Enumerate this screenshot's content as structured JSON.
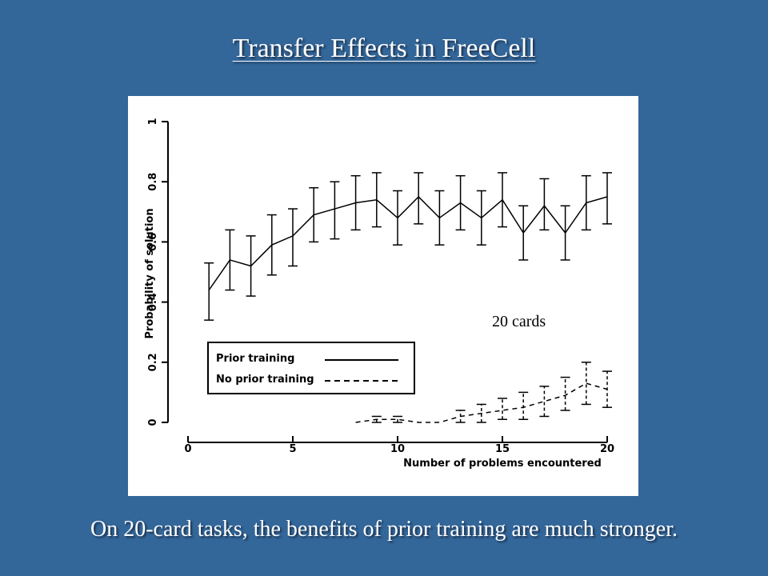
{
  "slide": {
    "title": "Transfer Effects in FreeCell",
    "caption": "On 20-card tasks, the benefits of prior training are much stronger."
  },
  "colors": {
    "background": "#336699",
    "text": "#ffffff",
    "panel": "#ffffff",
    "ink": "#000000"
  },
  "chart_data": {
    "type": "line",
    "xlabel": "Number of problems encountered",
    "ylabel": "Probability of solution",
    "xlim": [
      0,
      20
    ],
    "ylim": [
      0,
      1
    ],
    "xticks": [
      0,
      5,
      10,
      15,
      20
    ],
    "yticks": [
      0,
      0.2,
      0.4,
      0.6,
      0.8,
      1
    ],
    "legend_position": "bottom-left",
    "annotation": "20 cards",
    "series": [
      {
        "name": "Prior training",
        "style": "solid",
        "x": [
          1,
          2,
          3,
          4,
          5,
          6,
          7,
          8,
          9,
          10,
          11,
          12,
          13,
          14,
          15,
          16,
          17,
          18,
          19,
          20
        ],
        "y": [
          0.44,
          0.54,
          0.52,
          0.59,
          0.62,
          0.69,
          0.71,
          0.73,
          0.74,
          0.68,
          0.75,
          0.68,
          0.73,
          0.68,
          0.74,
          0.63,
          0.72,
          0.63,
          0.73,
          0.75
        ],
        "err_low": [
          0.34,
          0.44,
          0.42,
          0.49,
          0.52,
          0.6,
          0.61,
          0.64,
          0.65,
          0.59,
          0.66,
          0.59,
          0.64,
          0.59,
          0.65,
          0.54,
          0.64,
          0.54,
          0.64,
          0.66
        ],
        "err_high": [
          0.53,
          0.64,
          0.62,
          0.69,
          0.71,
          0.78,
          0.8,
          0.82,
          0.83,
          0.77,
          0.83,
          0.77,
          0.82,
          0.77,
          0.83,
          0.72,
          0.81,
          0.72,
          0.82,
          0.83
        ]
      },
      {
        "name": "No prior training",
        "style": "dashed",
        "x": [
          8,
          9,
          10,
          11,
          12,
          13,
          14,
          15,
          16,
          17,
          18,
          19,
          20
        ],
        "y": [
          0.0,
          0.01,
          0.01,
          0.0,
          0.0,
          0.02,
          0.03,
          0.04,
          0.05,
          0.07,
          0.09,
          0.13,
          0.11
        ],
        "err_low": [
          0.0,
          0.0,
          0.0,
          0.0,
          0.0,
          0.0,
          0.0,
          0.01,
          0.01,
          0.02,
          0.04,
          0.06,
          0.05
        ],
        "err_high": [
          0.0,
          0.02,
          0.02,
          0.0,
          0.0,
          0.04,
          0.06,
          0.08,
          0.1,
          0.12,
          0.15,
          0.2,
          0.17
        ]
      }
    ]
  }
}
